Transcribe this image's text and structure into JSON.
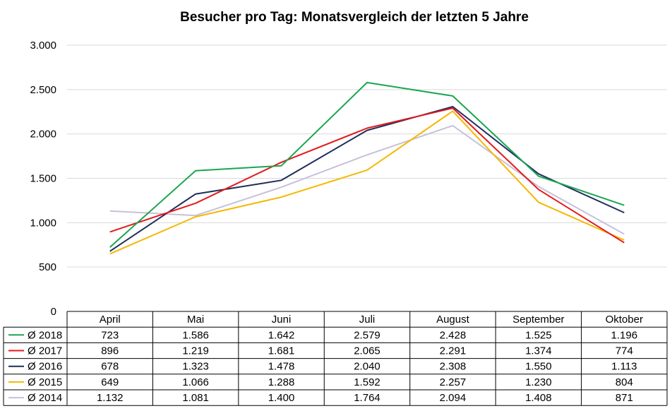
{
  "chart_data": {
    "type": "line",
    "title": "Besucher pro Tag: Monatsvergleich der letzten 5 Jahre",
    "categories": [
      "April",
      "Mai",
      "Juni",
      "Juli",
      "August",
      "September",
      "Oktober"
    ],
    "ylim": [
      0,
      3000
    ],
    "yticks": [
      0,
      500,
      1000,
      1500,
      2000,
      2500,
      3000
    ],
    "ytick_labels": [
      "0",
      "500",
      "1.000",
      "1.500",
      "2.000",
      "2.500",
      "3.000"
    ],
    "grid": true,
    "legend": "data-table-below",
    "series": [
      {
        "name": "Ø 2018",
        "color": "#1aa651",
        "values": [
          723,
          1586,
          1642,
          2579,
          2428,
          1525,
          1196
        ],
        "labels": [
          "723",
          "1.586",
          "1.642",
          "2.579",
          "2.428",
          "1.525",
          "1.196"
        ]
      },
      {
        "name": "Ø 2017",
        "color": "#e31a1c",
        "values": [
          896,
          1219,
          1681,
          2065,
          2291,
          1374,
          774
        ],
        "labels": [
          "896",
          "1.219",
          "1.681",
          "2.065",
          "2.291",
          "1.374",
          "774"
        ]
      },
      {
        "name": "Ø 2016",
        "color": "#1f2d5c",
        "values": [
          678,
          1323,
          1478,
          2040,
          2308,
          1550,
          1113
        ],
        "labels": [
          "678",
          "1.323",
          "1.478",
          "2.040",
          "2.308",
          "1.550",
          "1.113"
        ]
      },
      {
        "name": "Ø 2015",
        "color": "#f5b800",
        "values": [
          649,
          1066,
          1288,
          1592,
          2257,
          1230,
          804
        ],
        "labels": [
          "649",
          "1.066",
          "1.288",
          "1.592",
          "2.257",
          "1.230",
          "804"
        ]
      },
      {
        "name": "Ø 2014",
        "color": "#c8c0db",
        "values": [
          1132,
          1081,
          1400,
          1764,
          2094,
          1408,
          871
        ],
        "labels": [
          "1.132",
          "1.081",
          "1.400",
          "1.764",
          "2.094",
          "1.408",
          "871"
        ]
      }
    ]
  }
}
